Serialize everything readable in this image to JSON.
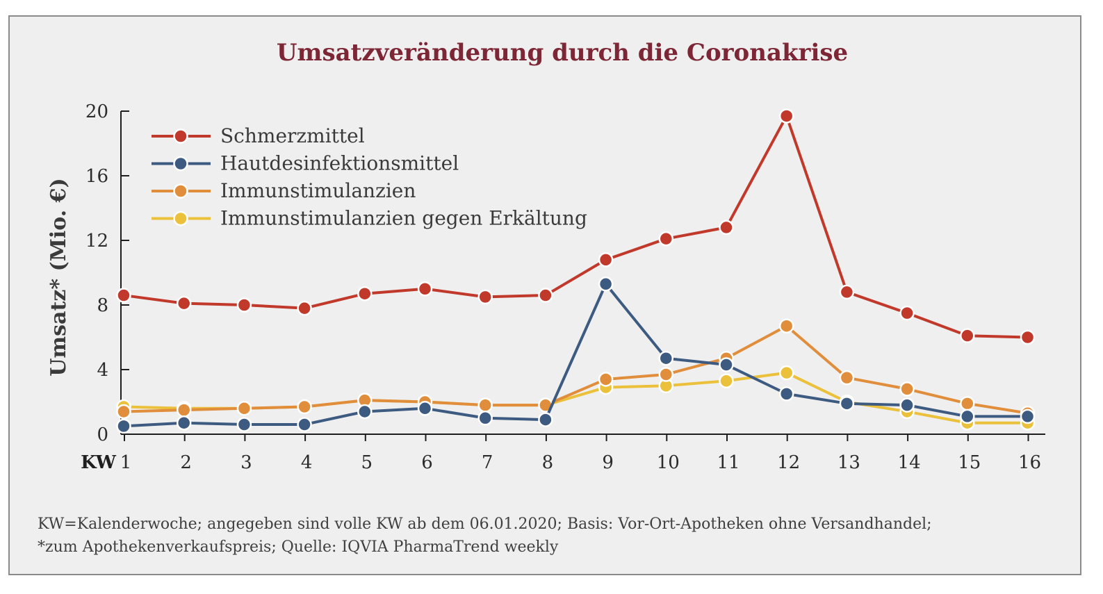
{
  "chart_data": {
    "type": "line",
    "title": "Umsatzveränderung durch die Coronakrise",
    "ylabel": "Umsatz* (Mio. €)",
    "xlabel_prefix": "KW",
    "categories": [
      "1",
      "2",
      "3",
      "4",
      "5",
      "6",
      "7",
      "8",
      "9",
      "10",
      "11",
      "12",
      "13",
      "14",
      "15",
      "16"
    ],
    "ylim": [
      0,
      20
    ],
    "yticks": [
      "0",
      "4",
      "8",
      "12",
      "16",
      "20"
    ],
    "legend_position": "top-left",
    "grid": false,
    "series": [
      {
        "name": "Schmerzmittel",
        "color": "#c0392b",
        "values": [
          8.6,
          8.1,
          8.0,
          7.8,
          8.7,
          9.0,
          8.5,
          8.6,
          10.8,
          12.1,
          12.8,
          19.7,
          8.8,
          7.5,
          6.1,
          6.0
        ]
      },
      {
        "name": "Hautdesinfektionsmittel",
        "color": "#3d5a80",
        "values": [
          0.5,
          0.7,
          0.6,
          0.6,
          1.4,
          1.6,
          1.0,
          0.9,
          9.3,
          4.7,
          4.3,
          2.5,
          1.9,
          1.8,
          1.1,
          1.1
        ]
      },
      {
        "name": "Immunstimulanzien",
        "color": "#e08e3b",
        "values": [
          1.4,
          1.5,
          1.6,
          1.7,
          2.1,
          2.0,
          1.8,
          1.8,
          3.4,
          3.7,
          4.7,
          6.7,
          3.5,
          2.8,
          1.9,
          1.3
        ]
      },
      {
        "name": "Immunstimulanzien gegen Erkältung",
        "color": "#ebc03a",
        "values": [
          1.7,
          1.6,
          1.6,
          1.7,
          2.1,
          2.0,
          1.8,
          1.8,
          2.9,
          3.0,
          3.3,
          3.8,
          2.0,
          1.4,
          0.7,
          0.7
        ]
      }
    ]
  },
  "colors": {
    "title": "#7d2636",
    "frame_background": "#efefef",
    "axis": "#1e1e1e"
  },
  "footnote": {
    "line1": "KW=Kalenderwoche; angegeben sind volle KW ab dem 06.01.2020; Basis: Vor-Ort-Apotheken ohne Versandhandel;",
    "line2": "*zum Apothekenverkaufspreis; Quelle: IQVIA PharmaTrend weekly"
  }
}
